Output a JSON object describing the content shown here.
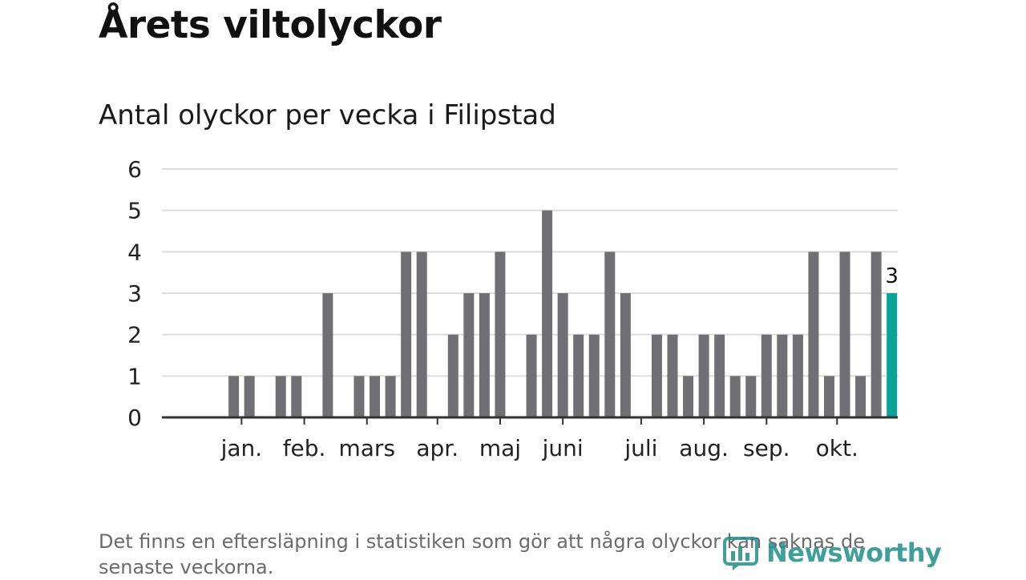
{
  "headline": "Årets viltolyckor",
  "chart_data": {
    "type": "bar",
    "title": "Antal olyckor per vecka i Filipstad",
    "xlabel": "",
    "ylabel": "",
    "ylim": [
      0,
      6
    ],
    "yticks": [
      "0",
      "1",
      "2",
      "3",
      "4",
      "5",
      "6"
    ],
    "weeks": [
      1,
      2,
      3,
      4,
      5,
      6,
      7,
      8,
      9,
      10,
      11,
      12,
      13,
      14,
      15,
      16,
      17,
      18,
      19,
      20,
      21,
      22,
      23,
      24,
      25,
      26,
      27,
      28,
      29,
      30,
      31,
      32,
      33,
      34,
      35,
      36,
      37,
      38,
      39,
      40,
      41,
      42,
      43,
      44
    ],
    "values": [
      0,
      0,
      1,
      1,
      0,
      1,
      1,
      0,
      3,
      0,
      1,
      1,
      1,
      4,
      4,
      0,
      2,
      3,
      3,
      4,
      0,
      2,
      5,
      3,
      2,
      2,
      4,
      3,
      0,
      2,
      2,
      1,
      2,
      2,
      1,
      1,
      2,
      2,
      2,
      4,
      1,
      4,
      1,
      4
    ],
    "highlight": {
      "week": 45,
      "value": 3,
      "label": "3",
      "color": "#0aa39a"
    },
    "bar_color": "#707074",
    "x_labels": [
      {
        "label": "jan.",
        "week": 3.5
      },
      {
        "label": "feb.",
        "week": 7.5
      },
      {
        "label": "mars",
        "week": 11.5
      },
      {
        "label": "apr.",
        "week": 16.0
      },
      {
        "label": "maj",
        "week": 20.0
      },
      {
        "label": "juni",
        "week": 24.0
      },
      {
        "label": "juli",
        "week": 29.0
      },
      {
        "label": "aug.",
        "week": 33.0
      },
      {
        "label": "sep.",
        "week": 37.0
      },
      {
        "label": "okt.",
        "week": 41.5
      }
    ]
  },
  "footnote": "Det finns en eftersläpning i statistiken som gör att några olyckor kan saknas de senaste veckorna.",
  "brand": {
    "name": "Newsworthy",
    "color": "#1f8f8a"
  }
}
